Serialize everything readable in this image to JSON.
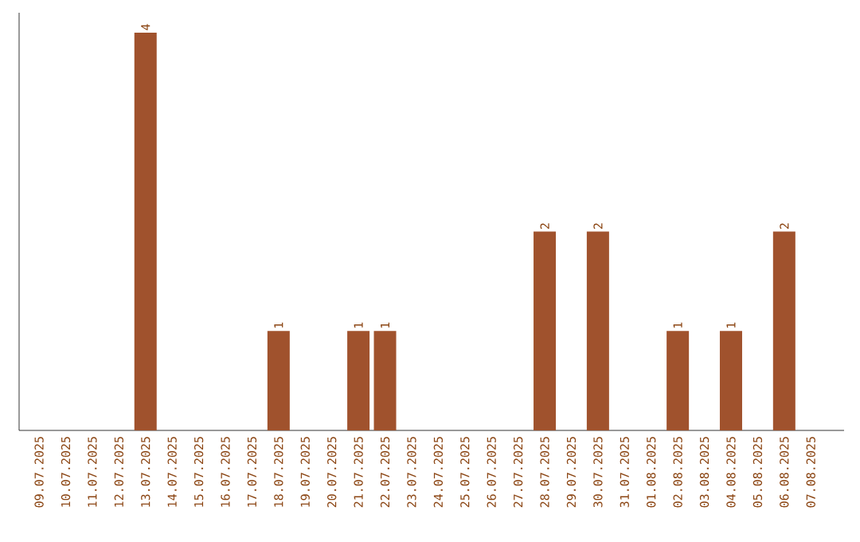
{
  "chart_data": {
    "type": "bar",
    "categories": [
      "09.07.2025",
      "10.07.2025",
      "11.07.2025",
      "12.07.2025",
      "13.07.2025",
      "14.07.2025",
      "15.07.2025",
      "16.07.2025",
      "17.07.2025",
      "18.07.2025",
      "19.07.2025",
      "20.07.2025",
      "21.07.2025",
      "22.07.2025",
      "23.07.2025",
      "24.07.2025",
      "25.07.2025",
      "26.07.2025",
      "27.07.2025",
      "28.07.2025",
      "29.07.2025",
      "30.07.2025",
      "31.07.2025",
      "01.08.2025",
      "02.08.2025",
      "03.08.2025",
      "04.08.2025",
      "05.08.2025",
      "06.08.2025",
      "07.08.2025"
    ],
    "values": [
      0,
      0,
      0,
      0,
      4,
      0,
      0,
      0,
      0,
      1,
      0,
      0,
      1,
      1,
      0,
      0,
      0,
      0,
      0,
      2,
      0,
      2,
      0,
      0,
      1,
      0,
      1,
      0,
      2,
      0
    ],
    "value_labels": [
      null,
      null,
      null,
      null,
      "4",
      null,
      null,
      null,
      null,
      "1",
      null,
      null,
      "1",
      "1",
      null,
      null,
      null,
      null,
      null,
      "2",
      null,
      "2",
      null,
      null,
      "1",
      null,
      "1",
      null,
      "2",
      null
    ],
    "color": "#a0522d",
    "tick_labels": "x"
  }
}
